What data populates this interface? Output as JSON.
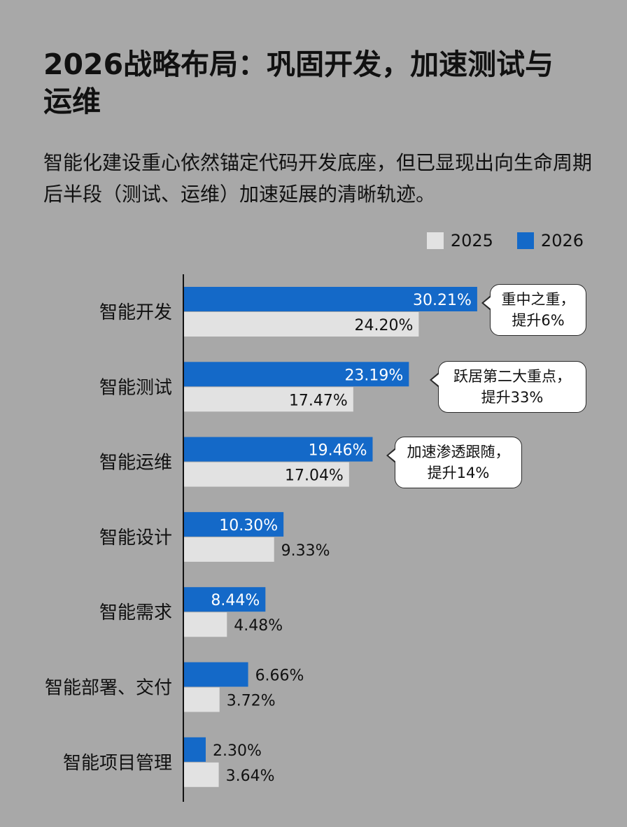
{
  "title": "2026战略布局：巩固开发，加速测试与运维",
  "subtitle": "智能化建设重心依然锚定代码开发底座，但已显现出向生命周期后半段（测试、运维）加速延展的清晰轨迹。",
  "legend": {
    "items": [
      {
        "label": "2025",
        "color": "#e2e2e2"
      },
      {
        "label": "2026",
        "color": "#1469c8"
      }
    ]
  },
  "callouts": [
    {
      "text": "重中之重，\n提升6%"
    },
    {
      "text": "跃居第二大重点，\n提升33%"
    },
    {
      "text": "加速渗透跟随，\n提升14%"
    }
  ],
  "chart_data": {
    "type": "bar",
    "orientation": "horizontal",
    "categories": [
      "智能开发",
      "智能测试",
      "智能运维",
      "智能设计",
      "智能需求",
      "智能部署、交付",
      "智能项目管理"
    ],
    "series": [
      {
        "name": "2026",
        "values": [
          30.21,
          23.19,
          19.46,
          10.3,
          8.44,
          6.66,
          2.3
        ],
        "labels": [
          "30.21%",
          "23.19%",
          "19.46%",
          "10.30%",
          "8.44%",
          "6.66%",
          "2.30%"
        ],
        "color": "#1469c8"
      },
      {
        "name": "2025",
        "values": [
          24.2,
          17.47,
          17.04,
          9.33,
          4.48,
          3.72,
          3.64
        ],
        "labels": [
          "24.20%",
          "17.47%",
          "17.04%",
          "9.33%",
          "4.48%",
          "3.72%",
          "3.64%"
        ],
        "color": "#e2e2e2"
      }
    ],
    "xlim": [
      0,
      30.21
    ],
    "grid": false,
    "legend_position": "top-right"
  }
}
